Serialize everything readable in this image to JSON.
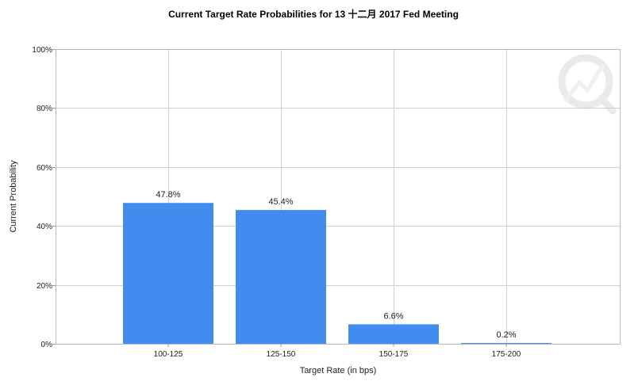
{
  "chart_data": {
    "type": "bar",
    "title": "Current Target Rate Probabilities for 13 十二月 2017  Fed Meeting",
    "xlabel": "Target Rate (in bps)",
    "ylabel": "Current Probability",
    "categories": [
      "100-125",
      "125-150",
      "150-175",
      "175-200"
    ],
    "values": [
      47.8,
      45.4,
      6.6,
      0.2
    ],
    "data_labels": [
      "47.8%",
      "45.4%",
      "6.6%",
      "0.2%"
    ],
    "ylim": [
      0,
      100
    ],
    "yticks": [
      0,
      20,
      40,
      60,
      80,
      100
    ],
    "ytick_labels": [
      "0%",
      "20%",
      "40%",
      "60%",
      "80%",
      "100%"
    ],
    "grid": true,
    "bar_color": "#428bef",
    "legend": "none"
  }
}
